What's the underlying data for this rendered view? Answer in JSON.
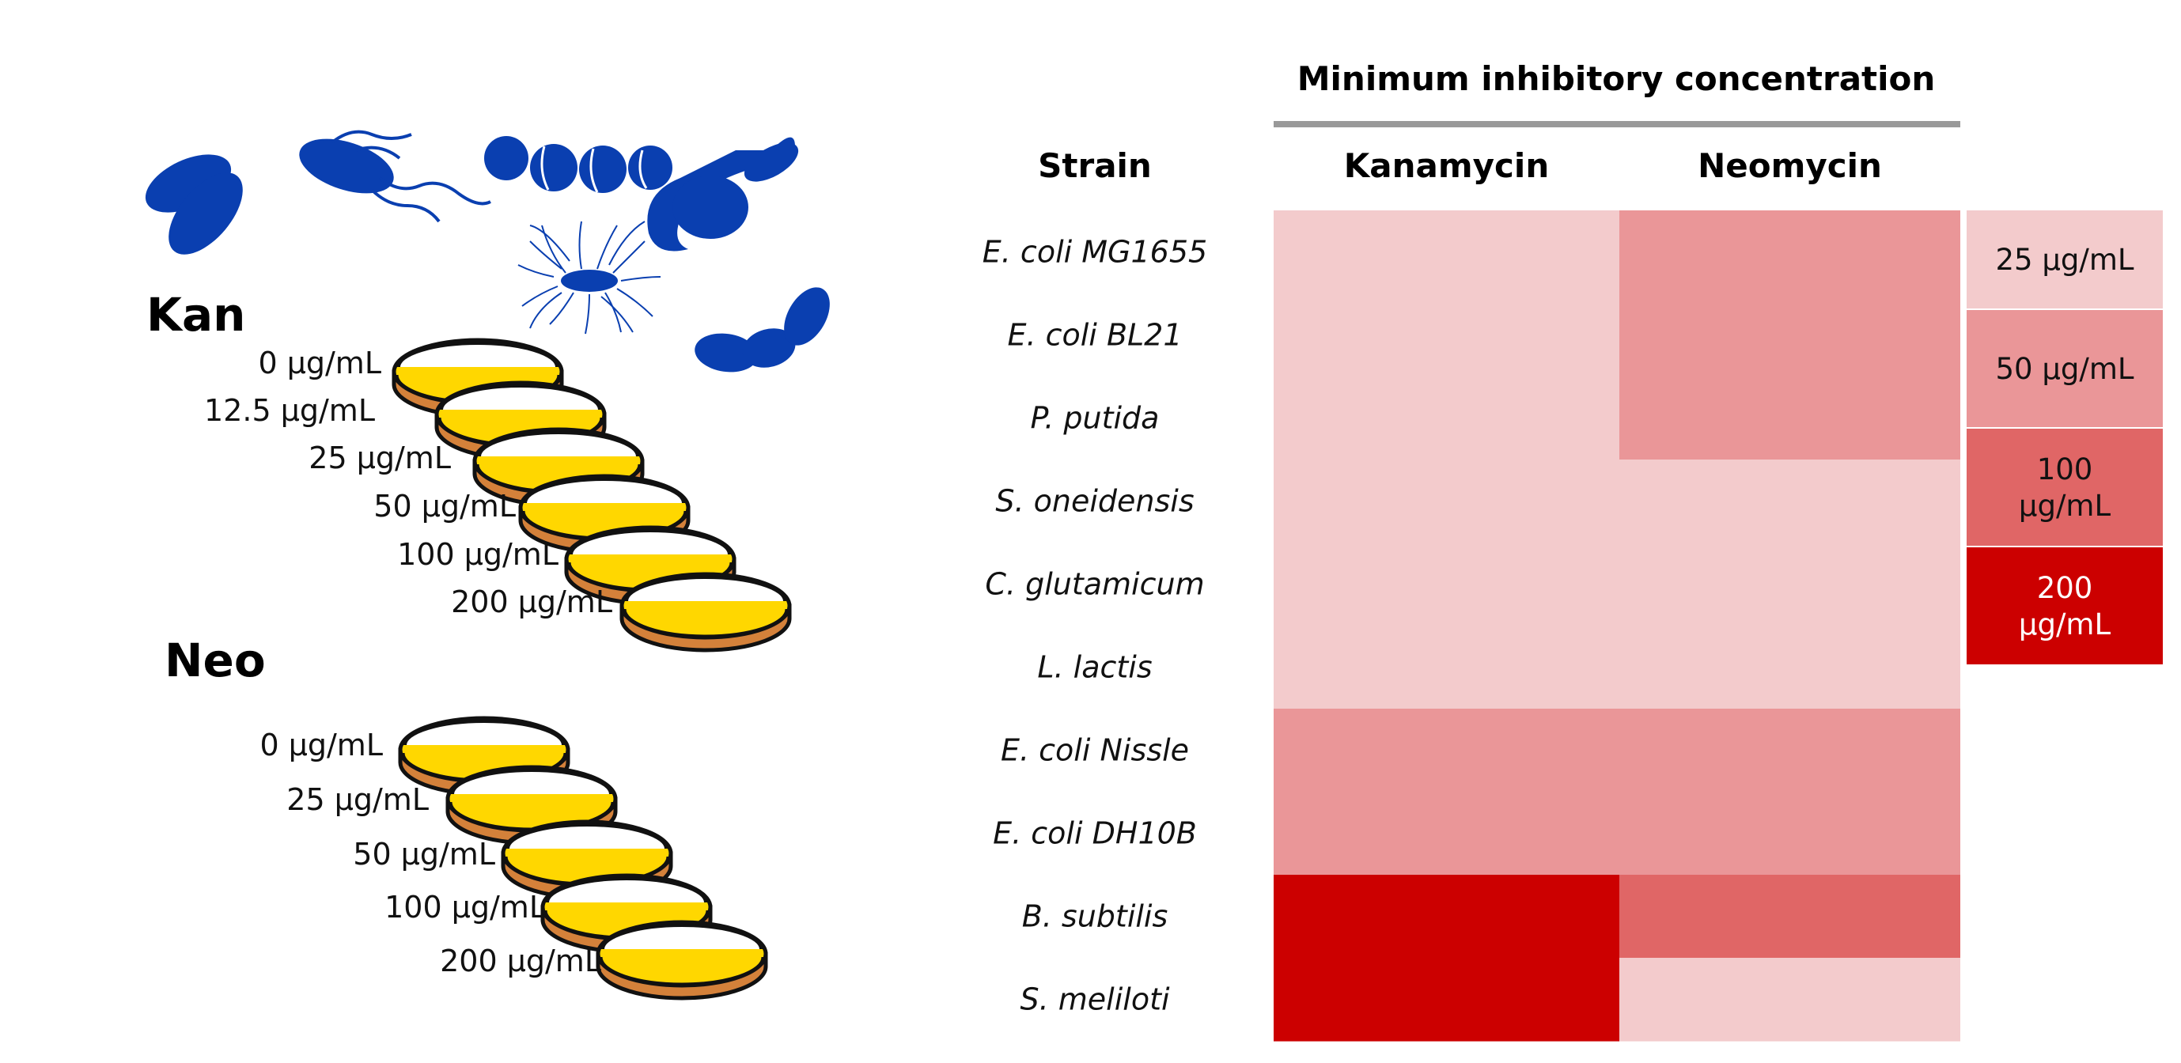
{
  "figure": {
    "plates": {
      "kan": {
        "label": "Kan",
        "concentrations": [
          "0 µg/mL",
          "12.5 µg/mL",
          "25 µg/mL",
          "50 µg/mL",
          "100 µg/mL",
          "200 µg/mL"
        ]
      },
      "neo": {
        "label": "Neo",
        "concentrations": [
          "0 µg/mL",
          "25 µg/mL",
          "50 µg/mL",
          "100 µg/mL",
          "200 µg/mL"
        ]
      }
    },
    "table": {
      "title": "Minimum inhibitory concentration",
      "strain_header": "Strain",
      "columns": [
        "Kanamycin",
        "Neomycin"
      ],
      "strains": [
        "E. coli MG1655",
        "E. coli BL21",
        "P. putida",
        "S. oneidensis",
        "C. glutamicum",
        "L. lactis",
        "E. coli Nissle",
        "E. coli DH10B",
        "B. subtilis",
        "S. meliloti"
      ],
      "mic_values": {
        "Kanamycin": [
          25,
          25,
          25,
          25,
          25,
          25,
          50,
          50,
          200,
          200
        ],
        "Neomycin": [
          50,
          50,
          50,
          25,
          25,
          25,
          50,
          50,
          100,
          25
        ]
      }
    },
    "legend": [
      {
        "value": 25,
        "lines": [
          "25 µg/mL"
        ],
        "color": "#f3cbcc"
      },
      {
        "value": 50,
        "lines": [
          "50 µg/mL"
        ],
        "color": "#ea9698"
      },
      {
        "value": 100,
        "lines": [
          "100",
          "µg/mL"
        ],
        "color": "#e06666"
      },
      {
        "value": 200,
        "lines": [
          "200",
          "µg/mL"
        ],
        "color": "#cc0000"
      }
    ],
    "colors": {
      "bacteria": "#0a3fb0",
      "agar": "#ffd700",
      "plate_base": "#d4813a",
      "divider": "#999999"
    }
  }
}
